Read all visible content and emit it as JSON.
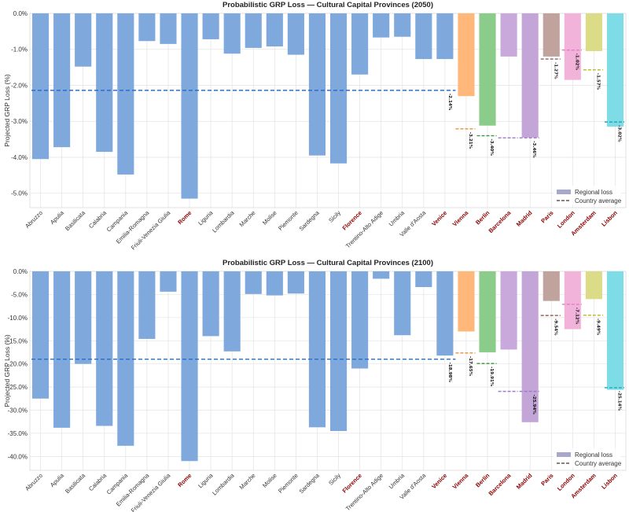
{
  "chart_data": [
    {
      "type": "bar",
      "title": "Probabilistic GRP Loss — Cultural Capital Provinces  (2050)",
      "ylabel": "Projected GRP Loss (%)",
      "ylim": [
        -5.4,
        0
      ],
      "yticks": [
        0,
        -1,
        -2,
        -3,
        -4,
        -5
      ],
      "ytick_labels": [
        "0.0%",
        "-1.0%",
        "-2.0%",
        "-3.0%",
        "-4.0%",
        "-5.0%"
      ],
      "categories": [
        "Abruzzo",
        "Apulia",
        "Basilicata",
        "Calabria",
        "Campania",
        "Emilia-Romagna",
        "Friuli-Venezia Giulia",
        "Rome",
        "Liguria",
        "Lombardia",
        "Marche",
        "Molise",
        "Piemonte",
        "Sardegna",
        "Sicily",
        "Florence",
        "Trentino-Alto Adige",
        "Umbria",
        "Valle d'Aosta",
        "Venice",
        "Vienna",
        "Berlin",
        "Barcelona",
        "Madrid",
        "Paris",
        "London",
        "Amsterdam",
        "Lisbon"
      ],
      "highlighted": [
        "Rome",
        "Florence",
        "Venice",
        "Vienna",
        "Berlin",
        "Barcelona",
        "Madrid",
        "Paris",
        "London",
        "Amsterdam",
        "Lisbon"
      ],
      "values": [
        -4.05,
        -3.72,
        -1.48,
        -3.85,
        -4.48,
        -0.77,
        -0.85,
        -5.15,
        -0.72,
        -1.12,
        -0.96,
        -0.92,
        -1.15,
        -3.95,
        -4.17,
        -1.7,
        -0.67,
        -0.65,
        -1.27,
        -1.27,
        -2.3,
        -3.12,
        -1.2,
        -3.45,
        -1.2,
        -1.85,
        -1.05,
        -3.15
      ],
      "bar_colors": [
        "#7fa8dc",
        "#7fa8dc",
        "#7fa8dc",
        "#7fa8dc",
        "#7fa8dc",
        "#7fa8dc",
        "#7fa8dc",
        "#7fa8dc",
        "#7fa8dc",
        "#7fa8dc",
        "#7fa8dc",
        "#7fa8dc",
        "#7fa8dc",
        "#7fa8dc",
        "#7fa8dc",
        "#7fa8dc",
        "#7fa8dc",
        "#7fa8dc",
        "#7fa8dc",
        "#7fa8dc",
        "#ffb87a",
        "#8bcc8b",
        "#c9a9dc",
        "#c3a5d8",
        "#bfa39c",
        "#f2b3da",
        "#dcdc88",
        "#7edce6"
      ],
      "country_average_italy": -2.14,
      "country_averages": [
        {
          "category": "Vienna",
          "value": -3.21,
          "label": "-3.21%",
          "color": "#e8913a"
        },
        {
          "category": "Berlin",
          "value": -3.4,
          "label": "-3.40%",
          "color": "#3a9a3a"
        },
        {
          "category": "Barcelona",
          "value": -3.46,
          "label": "",
          "color": "#a07cc4"
        },
        {
          "category": "Madrid",
          "value": -3.46,
          "label": "-3.46%",
          "color": "#a07cc4"
        },
        {
          "category": "Paris",
          "value": -1.27,
          "label": "-1.27%",
          "color": "#8a6a5e"
        },
        {
          "category": "London",
          "value": -1.02,
          "label": "-1.02%",
          "color": "#e77bc6"
        },
        {
          "category": "Amsterdam",
          "value": -1.57,
          "label": "-1.57%",
          "color": "#b8b820"
        },
        {
          "category": "Lisbon",
          "value": -3.02,
          "label": "-3.02%",
          "color": "#2aa6b8"
        }
      ],
      "italy_label": "-2.14%",
      "legend": {
        "bar": "Regional loss",
        "line": "Country average",
        "position": "lower right"
      }
    },
    {
      "type": "bar",
      "title": "Probabilistic GRP Loss — Cultural Capital Provinces  (2100)",
      "ylabel": "Projected GRP Loss (%)",
      "ylim": [
        -43,
        0
      ],
      "yticks": [
        0,
        -5,
        -10,
        -15,
        -20,
        -25,
        -30,
        -35,
        -40
      ],
      "ytick_labels": [
        "0.0%",
        "-5.0%",
        "-10.0%",
        "-15.0%",
        "-20.0%",
        "-25.0%",
        "-30.0%",
        "-35.0%",
        "-40.0%"
      ],
      "categories": [
        "Abruzzo",
        "Apulia",
        "Basilicata",
        "Calabria",
        "Campania",
        "Emilia-Romagna",
        "Friuli-Venezia Giulia",
        "Rome",
        "Liguria",
        "Lombardia",
        "Marche",
        "Molise",
        "Piemonte",
        "Sardegna",
        "Sicily",
        "Florence",
        "Trentino-Alto Adige",
        "Umbria",
        "Valle d'Aosta",
        "Venice",
        "Vienna",
        "Berlin",
        "Barcelona",
        "Madrid",
        "Paris",
        "London",
        "Amsterdam",
        "Lisbon"
      ],
      "highlighted": [
        "Rome",
        "Florence",
        "Venice",
        "Vienna",
        "Berlin",
        "Barcelona",
        "Madrid",
        "Paris",
        "London",
        "Amsterdam",
        "Lisbon"
      ],
      "values": [
        -27.5,
        -33.8,
        -20.0,
        -33.4,
        -37.7,
        -14.6,
        -4.4,
        -41.0,
        -14.0,
        -17.3,
        -4.9,
        -5.2,
        -4.8,
        -33.7,
        -34.5,
        -21.0,
        -1.6,
        -13.8,
        -3.4,
        -18.2,
        -13.0,
        -17.5,
        -16.9,
        -32.6,
        -6.4,
        -12.5,
        -6.0,
        -25.6
      ],
      "bar_colors": [
        "#7fa8dc",
        "#7fa8dc",
        "#7fa8dc",
        "#7fa8dc",
        "#7fa8dc",
        "#7fa8dc",
        "#7fa8dc",
        "#7fa8dc",
        "#7fa8dc",
        "#7fa8dc",
        "#7fa8dc",
        "#7fa8dc",
        "#7fa8dc",
        "#7fa8dc",
        "#7fa8dc",
        "#7fa8dc",
        "#7fa8dc",
        "#7fa8dc",
        "#7fa8dc",
        "#7fa8dc",
        "#ffb87a",
        "#8bcc8b",
        "#c9a9dc",
        "#c3a5d8",
        "#bfa39c",
        "#f2b3da",
        "#dcdc88",
        "#7edce6"
      ],
      "country_average_italy": -18.98,
      "country_averages": [
        {
          "category": "Vienna",
          "value": -17.65,
          "label": "-17.65%",
          "color": "#e8913a"
        },
        {
          "category": "Berlin",
          "value": -19.91,
          "label": "-19.91%",
          "color": "#3a9a3a"
        },
        {
          "category": "Barcelona",
          "value": -25.94,
          "label": "",
          "color": "#a07cc4"
        },
        {
          "category": "Madrid",
          "value": -25.94,
          "label": "-25.94%",
          "color": "#a07cc4"
        },
        {
          "category": "Paris",
          "value": -9.54,
          "label": "-9.54%",
          "color": "#8a6a5e"
        },
        {
          "category": "London",
          "value": -7.12,
          "label": "-7.12%",
          "color": "#e77bc6"
        },
        {
          "category": "Amsterdam",
          "value": -9.49,
          "label": "-9.49%",
          "color": "#b8b820"
        },
        {
          "category": "Lisbon",
          "value": -25.14,
          "label": "-25.14%",
          "color": "#2aa6b8"
        }
      ],
      "italy_label": "-18.98%",
      "legend": {
        "bar": "Regional loss",
        "line": "Country average",
        "position": "lower right"
      }
    }
  ],
  "colors": {
    "italy_line": "#2a6fc9",
    "grid": "#e3e3e3",
    "highlight_label": "#8b0000",
    "legend_bar": "#a7a8cc",
    "legend_line": "#665555"
  }
}
